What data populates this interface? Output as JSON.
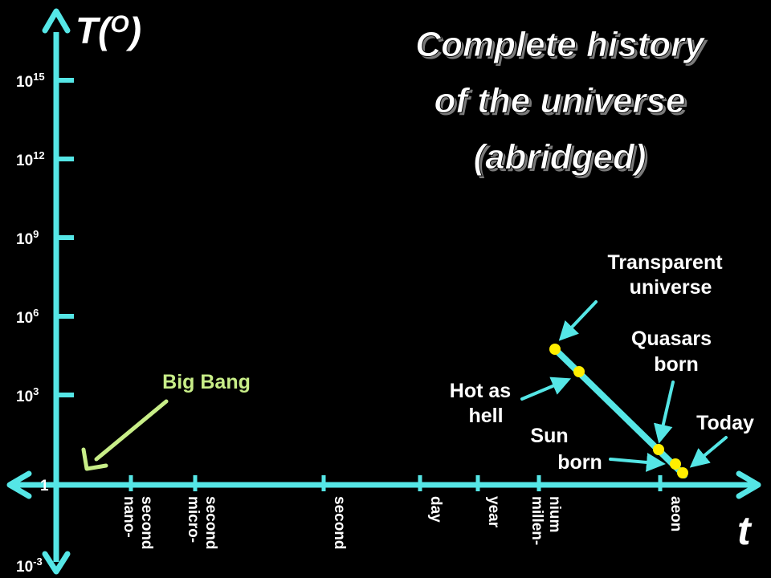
{
  "colors": {
    "background": "#000000",
    "axis": "#55e6e6",
    "text": "#ffffff",
    "point": "#ffee00",
    "big_bang": "#c8ee88"
  },
  "axes": {
    "y_label": "T(",
    "y_label_sup": "O",
    "y_label_close": ")",
    "x_label": "t",
    "y_ticks": [
      {
        "base": "10",
        "exp": "15"
      },
      {
        "base": "10",
        "exp": "12"
      },
      {
        "base": "10",
        "exp": "9"
      },
      {
        "base": "10",
        "exp": "6"
      },
      {
        "base": "10",
        "exp": "3"
      },
      {
        "base": "1",
        "exp": ""
      },
      {
        "base": "10",
        "exp": "-3"
      }
    ],
    "x_ticks": [
      {
        "label": "nano-\nsecond"
      },
      {
        "label": "micro-\nsecond"
      },
      {
        "label": "second"
      },
      {
        "label": "day"
      },
      {
        "label": "year"
      },
      {
        "label": "millen-\nnium"
      },
      {
        "label": "aeon"
      }
    ]
  },
  "title": {
    "line1": "Complete history",
    "line2": "of the universe",
    "line3": "(abridged)"
  },
  "annotations": {
    "big_bang": "Big Bang",
    "transparent_1": "Transparent",
    "transparent_2": "universe",
    "quasars_1": "Quasars",
    "quasars_2": "born",
    "hot_1": "Hot as",
    "hot_2": "hell",
    "sun_1": "Sun",
    "sun_2": "born",
    "today": "Today"
  },
  "points": [
    {
      "name": "transparent-universe"
    },
    {
      "name": "hot-as-hell"
    },
    {
      "name": "quasars-born"
    },
    {
      "name": "sun-born"
    },
    {
      "name": "today"
    }
  ]
}
